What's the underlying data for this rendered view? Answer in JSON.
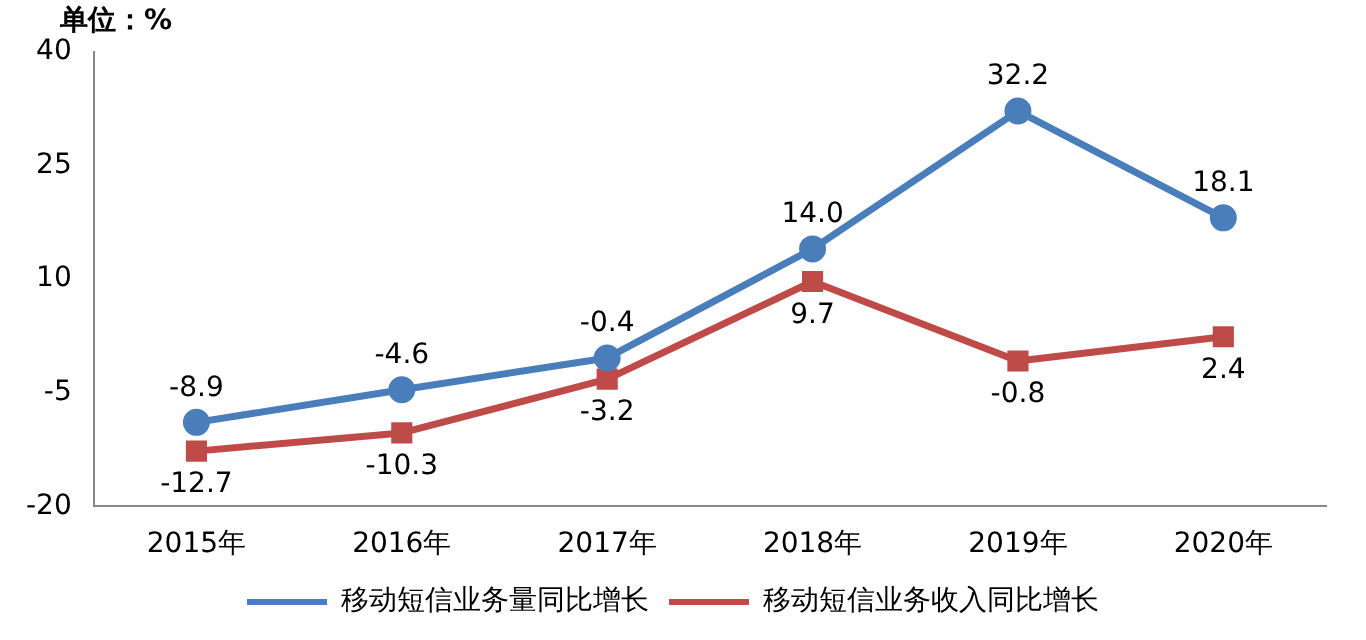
{
  "chart_data": {
    "type": "line",
    "ylabel": "单位：%",
    "categories": [
      "2015年",
      "2016年",
      "2017年",
      "2018年",
      "2019年",
      "2020年"
    ],
    "series": [
      {
        "name": "移动短信业务量同比增长",
        "color": "#4a7ebb",
        "marker": "circle",
        "values": [
          -8.9,
          -4.6,
          -0.4,
          14.0,
          32.2,
          18.1
        ],
        "value_labels": [
          "-8.9",
          "-4.6",
          "-0.4",
          "14.0",
          "32.2",
          "18.1"
        ]
      },
      {
        "name": "移动短信业务收入同比增长",
        "color": "#be4b48",
        "marker": "square",
        "values": [
          -12.7,
          -10.3,
          -3.2,
          9.7,
          -0.8,
          2.4
        ],
        "value_labels": [
          "-12.7",
          "-10.3",
          "-3.2",
          "9.7",
          "-0.8",
          "2.4"
        ]
      }
    ],
    "ylim": [
      -20,
      40
    ],
    "yticks": [
      -20,
      -5,
      10,
      25,
      40
    ],
    "grid": false,
    "legend": "bottom",
    "line_style": "solid"
  }
}
